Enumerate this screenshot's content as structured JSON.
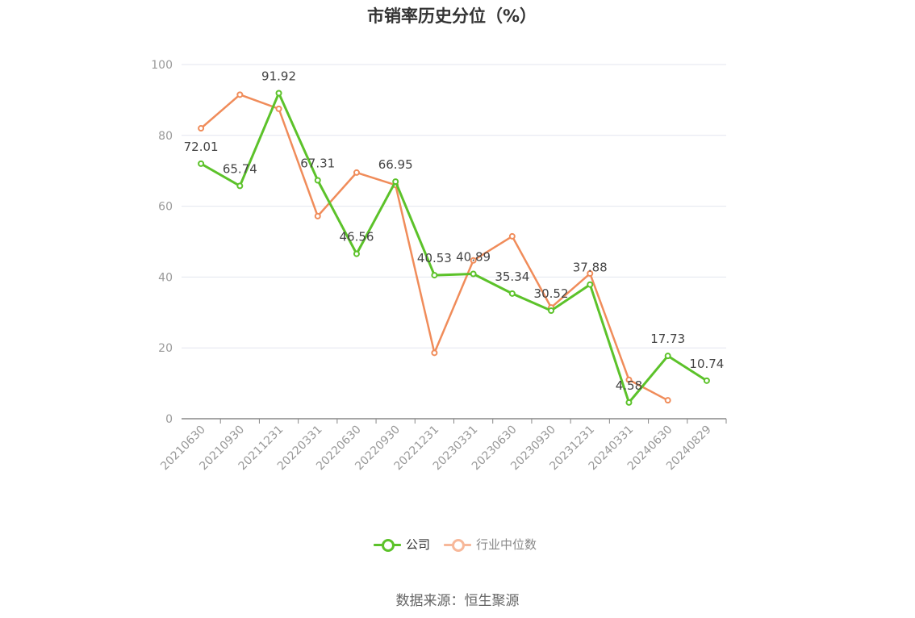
{
  "chart_data": {
    "type": "line",
    "title": "市销率历史分位（%）",
    "categories": [
      "20210630",
      "20210930",
      "20211231",
      "20220331",
      "20220630",
      "20220930",
      "20221231",
      "20230331",
      "20230630",
      "20230930",
      "20231231",
      "20240331",
      "20240630",
      "20240829"
    ],
    "ylim": [
      0,
      100
    ],
    "yticks": [
      0,
      20,
      40,
      60,
      80,
      100
    ],
    "grid": true,
    "legend_position": "bottom",
    "series": [
      {
        "name": "公司",
        "color": "#5cc22a",
        "values": [
          72.01,
          65.74,
          91.92,
          67.31,
          46.56,
          66.95,
          40.53,
          40.89,
          35.34,
          30.52,
          37.88,
          4.58,
          17.73,
          10.74
        ],
        "data_labels": [
          "72.01",
          "65.74",
          "91.92",
          "67.31",
          "46.56",
          "66.95",
          "40.53",
          "40.89",
          "35.34",
          "30.52",
          "37.88",
          "4.58",
          "17.73",
          "10.74"
        ]
      },
      {
        "name": "行业中位数",
        "color": "#f08c5a",
        "values": [
          82,
          91.5,
          87.5,
          57.2,
          69.5,
          66,
          18.6,
          44.7,
          51.5,
          31.4,
          41,
          11,
          5.2,
          null
        ]
      }
    ]
  },
  "legend": {
    "company_label": "公司",
    "industry_label": "行业中位数",
    "company_color": "#5cc22a",
    "industry_color": "#f7b89a",
    "company_text_color": "#333333",
    "industry_text_color": "#888888"
  },
  "footer": {
    "source": "数据来源：恒生聚源"
  }
}
